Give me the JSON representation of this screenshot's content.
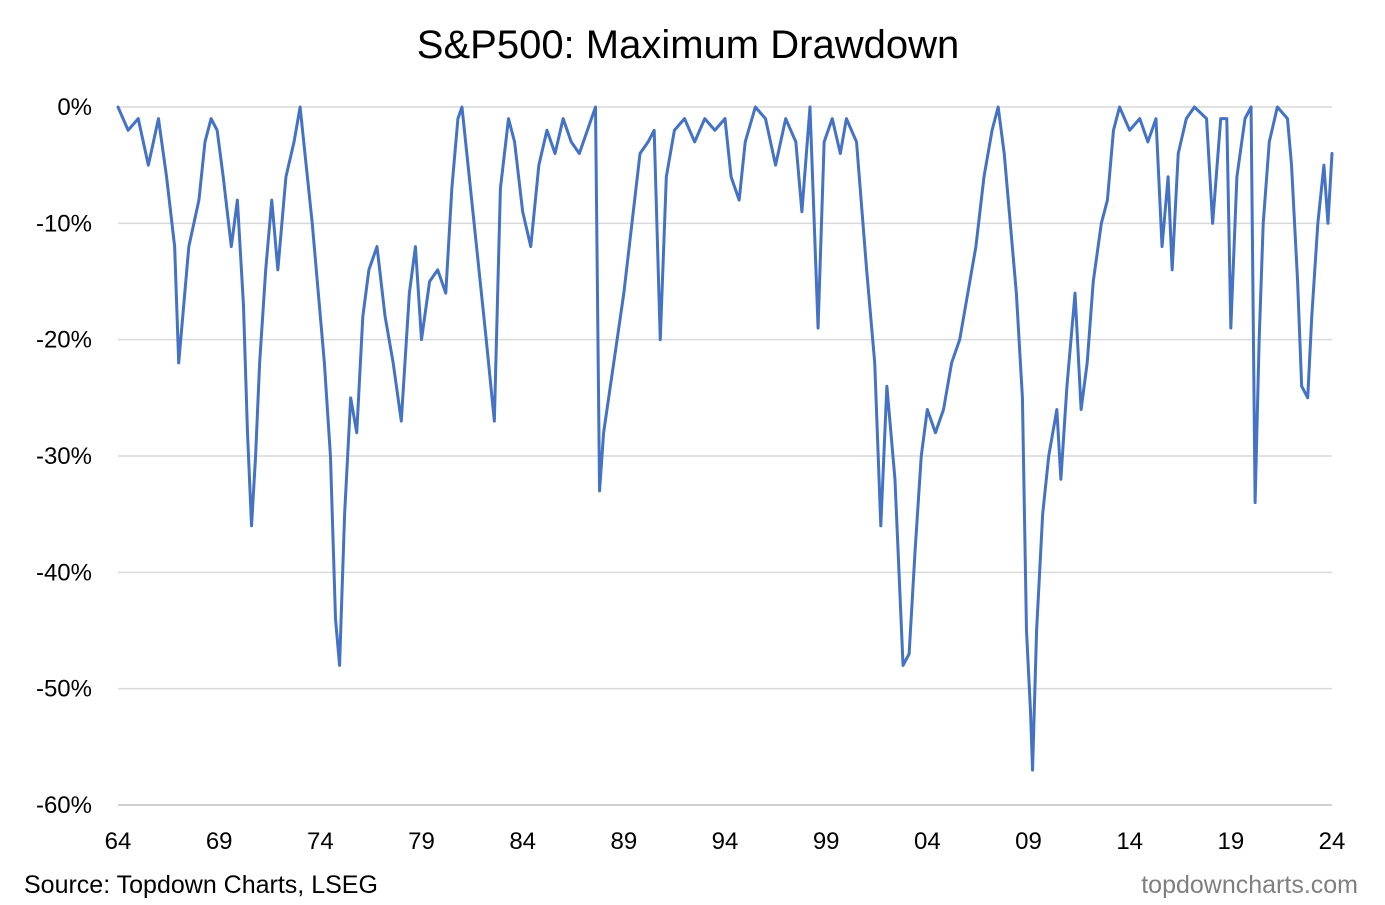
{
  "chart_data": {
    "type": "line",
    "title": "S&P500: Maximum Drawdown",
    "xlabel": "",
    "ylabel": "",
    "x_ticks": [
      "64",
      "69",
      "74",
      "79",
      "84",
      "89",
      "94",
      "99",
      "04",
      "09",
      "14",
      "19",
      "24"
    ],
    "y_ticks": [
      "0%",
      "-10%",
      "-20%",
      "-30%",
      "-40%",
      "-50%",
      "-60%"
    ],
    "y_tick_values": [
      0,
      -10,
      -20,
      -30,
      -40,
      -50,
      -60
    ],
    "xlim": [
      1964,
      2024
    ],
    "ylim": [
      -60,
      0
    ],
    "grid": "horizontal",
    "legend": "none",
    "source": "Source: Topdown Charts, LSEG",
    "watermark": "topdowncharts.com",
    "series_color": "#4472c4",
    "series": [
      {
        "values": [
          [
            1964.0,
            0
          ],
          [
            1964.5,
            -2
          ],
          [
            1965.0,
            -1
          ],
          [
            1965.5,
            -5
          ],
          [
            1966.0,
            -1
          ],
          [
            1966.4,
            -6
          ],
          [
            1966.8,
            -12
          ],
          [
            1967.0,
            -22
          ],
          [
            1967.2,
            -18
          ],
          [
            1967.5,
            -12
          ],
          [
            1968.0,
            -8
          ],
          [
            1968.3,
            -3
          ],
          [
            1968.6,
            -1
          ],
          [
            1968.9,
            -2
          ],
          [
            1969.2,
            -6
          ],
          [
            1969.6,
            -12
          ],
          [
            1969.9,
            -8
          ],
          [
            1970.2,
            -17
          ],
          [
            1970.4,
            -28
          ],
          [
            1970.6,
            -36
          ],
          [
            1970.8,
            -30
          ],
          [
            1971.0,
            -22
          ],
          [
            1971.3,
            -14
          ],
          [
            1971.6,
            -8
          ],
          [
            1971.9,
            -14
          ],
          [
            1972.3,
            -6
          ],
          [
            1972.7,
            -3
          ],
          [
            1973.0,
            0
          ],
          [
            1973.3,
            -5
          ],
          [
            1973.6,
            -10
          ],
          [
            1973.9,
            -16
          ],
          [
            1974.2,
            -22
          ],
          [
            1974.5,
            -30
          ],
          [
            1974.75,
            -44
          ],
          [
            1974.95,
            -48
          ],
          [
            1975.2,
            -35
          ],
          [
            1975.5,
            -25
          ],
          [
            1975.8,
            -28
          ],
          [
            1976.1,
            -18
          ],
          [
            1976.4,
            -14
          ],
          [
            1976.8,
            -12
          ],
          [
            1977.2,
            -18
          ],
          [
            1977.6,
            -22
          ],
          [
            1978.0,
            -27
          ],
          [
            1978.4,
            -16
          ],
          [
            1978.7,
            -12
          ],
          [
            1979.0,
            -20
          ],
          [
            1979.4,
            -15
          ],
          [
            1979.8,
            -14
          ],
          [
            1980.2,
            -16
          ],
          [
            1980.5,
            -7
          ],
          [
            1980.8,
            -1
          ],
          [
            1981.0,
            0
          ],
          [
            1981.3,
            -5
          ],
          [
            1981.6,
            -10
          ],
          [
            1981.9,
            -15
          ],
          [
            1982.2,
            -20
          ],
          [
            1982.6,
            -27
          ],
          [
            1982.9,
            -7
          ],
          [
            1983.3,
            -1
          ],
          [
            1983.6,
            -3
          ],
          [
            1984.0,
            -9
          ],
          [
            1984.4,
            -12
          ],
          [
            1984.8,
            -5
          ],
          [
            1985.2,
            -2
          ],
          [
            1985.6,
            -4
          ],
          [
            1986.0,
            -1
          ],
          [
            1986.4,
            -3
          ],
          [
            1986.8,
            -4
          ],
          [
            1987.2,
            -2
          ],
          [
            1987.6,
            0
          ],
          [
            1987.8,
            -33
          ],
          [
            1988.0,
            -28
          ],
          [
            1988.5,
            -22
          ],
          [
            1989.0,
            -16
          ],
          [
            1989.4,
            -10
          ],
          [
            1989.8,
            -4
          ],
          [
            1990.2,
            -3
          ],
          [
            1990.5,
            -2
          ],
          [
            1990.8,
            -20
          ],
          [
            1991.1,
            -6
          ],
          [
            1991.5,
            -2
          ],
          [
            1992.0,
            -1
          ],
          [
            1992.5,
            -3
          ],
          [
            1993.0,
            -1
          ],
          [
            1993.5,
            -2
          ],
          [
            1994.0,
            -1
          ],
          [
            1994.3,
            -6
          ],
          [
            1994.7,
            -8
          ],
          [
            1995.0,
            -3
          ],
          [
            1995.5,
            0
          ],
          [
            1996.0,
            -1
          ],
          [
            1996.5,
            -5
          ],
          [
            1997.0,
            -1
          ],
          [
            1997.5,
            -3
          ],
          [
            1997.8,
            -9
          ],
          [
            1998.2,
            0
          ],
          [
            1998.6,
            -19
          ],
          [
            1998.9,
            -3
          ],
          [
            1999.3,
            -1
          ],
          [
            1999.7,
            -4
          ],
          [
            2000.0,
            -1
          ],
          [
            2000.5,
            -3
          ],
          [
            2001.0,
            -14
          ],
          [
            2001.4,
            -22
          ],
          [
            2001.7,
            -36
          ],
          [
            2002.0,
            -24
          ],
          [
            2002.4,
            -32
          ],
          [
            2002.8,
            -48
          ],
          [
            2003.1,
            -47
          ],
          [
            2003.4,
            -38
          ],
          [
            2003.7,
            -30
          ],
          [
            2004.0,
            -26
          ],
          [
            2004.4,
            -28
          ],
          [
            2004.8,
            -26
          ],
          [
            2005.2,
            -22
          ],
          [
            2005.6,
            -20
          ],
          [
            2006.0,
            -16
          ],
          [
            2006.4,
            -12
          ],
          [
            2006.8,
            -6
          ],
          [
            2007.2,
            -2
          ],
          [
            2007.5,
            0
          ],
          [
            2007.8,
            -4
          ],
          [
            2008.1,
            -10
          ],
          [
            2008.4,
            -16
          ],
          [
            2008.7,
            -25
          ],
          [
            2008.9,
            -45
          ],
          [
            2009.1,
            -52
          ],
          [
            2009.2,
            -57
          ],
          [
            2009.4,
            -45
          ],
          [
            2009.7,
            -35
          ],
          [
            2010.0,
            -30
          ],
          [
            2010.4,
            -26
          ],
          [
            2010.6,
            -32
          ],
          [
            2010.9,
            -24
          ],
          [
            2011.3,
            -16
          ],
          [
            2011.6,
            -26
          ],
          [
            2011.9,
            -22
          ],
          [
            2012.2,
            -15
          ],
          [
            2012.6,
            -10
          ],
          [
            2012.9,
            -8
          ],
          [
            2013.2,
            -2
          ],
          [
            2013.5,
            0
          ],
          [
            2014.0,
            -2
          ],
          [
            2014.5,
            -1
          ],
          [
            2014.9,
            -3
          ],
          [
            2015.3,
            -1
          ],
          [
            2015.6,
            -12
          ],
          [
            2015.9,
            -6
          ],
          [
            2016.1,
            -14
          ],
          [
            2016.4,
            -4
          ],
          [
            2016.8,
            -1
          ],
          [
            2017.2,
            0
          ],
          [
            2017.8,
            -1
          ],
          [
            2018.1,
            -10
          ],
          [
            2018.5,
            -1
          ],
          [
            2018.8,
            -1
          ],
          [
            2019.0,
            -19
          ],
          [
            2019.3,
            -6
          ],
          [
            2019.7,
            -1
          ],
          [
            2020.0,
            0
          ],
          [
            2020.2,
            -34
          ],
          [
            2020.4,
            -20
          ],
          [
            2020.6,
            -10
          ],
          [
            2020.9,
            -3
          ],
          [
            2021.3,
            0
          ],
          [
            2021.8,
            -1
          ],
          [
            2022.0,
            -5
          ],
          [
            2022.3,
            -15
          ],
          [
            2022.5,
            -24
          ],
          [
            2022.8,
            -25
          ],
          [
            2023.0,
            -18
          ],
          [
            2023.3,
            -10
          ],
          [
            2023.6,
            -5
          ],
          [
            2023.8,
            -10
          ],
          [
            2024.0,
            -4
          ]
        ]
      }
    ]
  }
}
